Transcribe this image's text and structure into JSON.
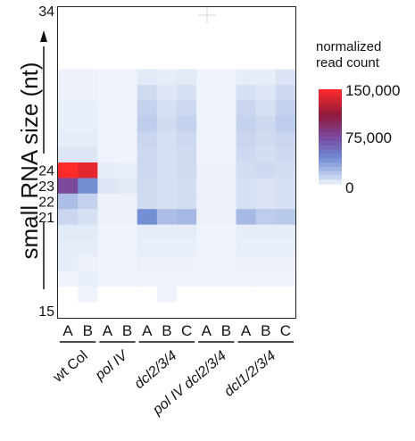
{
  "chart_data": {
    "type": "heatmap",
    "ylabel": "small RNA size (nt)",
    "y_range": [
      15,
      34
    ],
    "y_tick_labels": [
      "34",
      "24",
      "23",
      "22",
      "21",
      "15"
    ],
    "row_sizes": [
      34,
      33,
      32,
      31,
      30,
      29,
      28,
      27,
      26,
      25,
      24,
      23,
      22,
      21,
      20,
      19,
      18,
      17,
      16,
      15
    ],
    "columns": [
      {
        "label": "A"
      },
      {
        "label": "B"
      },
      {
        "label": "A"
      },
      {
        "label": "B"
      },
      {
        "label": "A"
      },
      {
        "label": "B"
      },
      {
        "label": "C"
      },
      {
        "label": "A"
      },
      {
        "label": "B"
      },
      {
        "label": "A"
      },
      {
        "label": "B"
      },
      {
        "label": "C"
      }
    ],
    "groups": [
      {
        "label": "wt Col",
        "columns": [
          0,
          1
        ],
        "italic": false
      },
      {
        "label": "pol IV",
        "columns": [
          2,
          3
        ],
        "italic": true
      },
      {
        "label": "dcl2/3/4",
        "columns": [
          4,
          5,
          6
        ],
        "italic": true
      },
      {
        "label": "pol IV dcl2/3/4",
        "columns": [
          7,
          8
        ],
        "italic": true
      },
      {
        "label": "dcl1/2/3/4",
        "columns": [
          9,
          10,
          11
        ],
        "italic": true
      }
    ],
    "values": [
      [
        0,
        0,
        0,
        0,
        0,
        0,
        0,
        0,
        0,
        0,
        0,
        0
      ],
      [
        0,
        0,
        0,
        0,
        0,
        0,
        0,
        0,
        0,
        0,
        0,
        0
      ],
      [
        0,
        0,
        0,
        0,
        0,
        0,
        0,
        0,
        0,
        0,
        0,
        0
      ],
      [
        0,
        0,
        0,
        0,
        0,
        0,
        0,
        0,
        0,
        0,
        0,
        0
      ],
      [
        1000,
        1000,
        500,
        500,
        3000,
        2000,
        3000,
        500,
        500,
        2000,
        2000,
        5000
      ],
      [
        1000,
        1000,
        500,
        500,
        8000,
        4000,
        6000,
        500,
        500,
        6000,
        4000,
        9000
      ],
      [
        1500,
        1500,
        500,
        500,
        12000,
        6000,
        9000,
        500,
        500,
        10000,
        6000,
        12000
      ],
      [
        1500,
        1500,
        500,
        500,
        14000,
        8000,
        12000,
        500,
        500,
        12000,
        9000,
        14000
      ],
      [
        2000,
        2000,
        500,
        500,
        10000,
        6000,
        9000,
        500,
        500,
        10000,
        8000,
        10000
      ],
      [
        4000,
        4000,
        500,
        500,
        9000,
        6000,
        8000,
        500,
        500,
        9000,
        7000,
        9000
      ],
      [
        150000,
        140000,
        2000,
        1500,
        9000,
        6000,
        8000,
        1000,
        1000,
        7000,
        9000,
        7000
      ],
      [
        75000,
        40000,
        4000,
        3000,
        8000,
        6000,
        7000,
        1000,
        1000,
        6000,
        5000,
        6000
      ],
      [
        20000,
        12000,
        1000,
        1000,
        8000,
        6000,
        7000,
        1000,
        1000,
        6000,
        5000,
        6000
      ],
      [
        10000,
        6000,
        1000,
        1000,
        40000,
        20000,
        22000,
        1000,
        1000,
        22000,
        14000,
        16000
      ],
      [
        3000,
        3000,
        500,
        500,
        2000,
        2000,
        2000,
        500,
        500,
        2000,
        2000,
        2000
      ],
      [
        2000,
        2000,
        500,
        500,
        1500,
        1500,
        1500,
        500,
        500,
        1500,
        1500,
        1500
      ],
      [
        2000,
        1000,
        500,
        500,
        1000,
        1000,
        1000,
        500,
        500,
        1000,
        1000,
        1000
      ],
      [
        500,
        1500,
        500,
        500,
        500,
        500,
        500,
        500,
        500,
        500,
        500,
        500
      ],
      [
        0,
        500,
        0,
        0,
        0,
        500,
        0,
        0,
        0,
        0,
        0,
        0
      ],
      [
        0,
        0,
        0,
        0,
        0,
        0,
        0,
        0,
        0,
        0,
        0,
        0
      ]
    ],
    "colorbar": {
      "title_line1": "normalized",
      "title_line2": "read count",
      "min": 0,
      "max": 150000,
      "tick_labels": [
        "150,000",
        "75,000",
        "0"
      ],
      "tick_values": [
        150000,
        75000,
        0
      ],
      "colors": [
        "#f4f7fc",
        "#b9c9ea",
        "#6f8ad2",
        "#7a4aa0",
        "#8f1a3a",
        "#ff2a2a"
      ]
    }
  }
}
